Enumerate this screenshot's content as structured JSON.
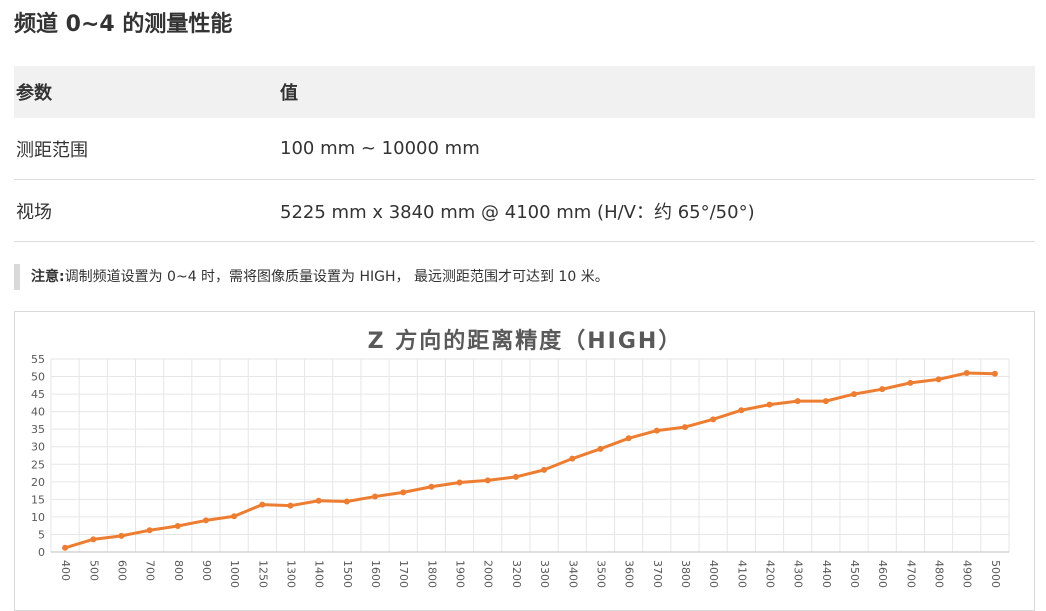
{
  "title": "频道 0~4 的测量性能",
  "table": {
    "headers": [
      "参数",
      "值"
    ],
    "rows": [
      {
        "param": "测距范围",
        "value": "100 mm ~ 10000 mm"
      },
      {
        "param": "视场",
        "value": "5225 mm x 3840 mm @ 4100 mm (H/V：约 65°/50°)"
      }
    ]
  },
  "note": {
    "label": "注意:",
    "text": "调制频道设置为 0~4 时，需将图像质量设置为 HIGH， 最远测距范围才可达到 10 米。"
  },
  "colors": {
    "line": "#ed7d31",
    "grid": "#e6e6e6",
    "title": "#595959"
  },
  "chart_data": {
    "type": "line",
    "title": "Z 方向的距离精度（HIGH）",
    "xlabel": "",
    "ylabel": "",
    "ylim": [
      0,
      55
    ],
    "yticks": [
      0,
      5,
      10,
      15,
      20,
      25,
      30,
      35,
      40,
      45,
      50,
      55
    ],
    "grid": true,
    "categories": [
      "400",
      "500",
      "600",
      "700",
      "800",
      "900",
      "1000",
      "1250",
      "1300",
      "1400",
      "1500",
      "1600",
      "1700",
      "1800",
      "1900",
      "2000",
      "3200",
      "3300",
      "3400",
      "3500",
      "3600",
      "3700",
      "3800",
      "4000",
      "4100",
      "4200",
      "4300",
      "4400",
      "4500",
      "4600",
      "4700",
      "4800",
      "4900",
      "5000"
    ],
    "series": [
      {
        "name": "Z 方向的距离精度",
        "values": [
          1.2,
          3.6,
          4.6,
          6.2,
          7.4,
          9.0,
          10.2,
          13.5,
          13.2,
          14.6,
          14.4,
          15.8,
          17.0,
          18.6,
          19.8,
          20.4,
          21.4,
          23.4,
          26.6,
          29.4,
          32.4,
          34.6,
          35.6,
          37.8,
          40.4,
          42.0,
          43.0,
          43.0,
          45.0,
          46.4,
          48.2,
          49.2,
          51.0,
          50.8
        ]
      }
    ]
  }
}
